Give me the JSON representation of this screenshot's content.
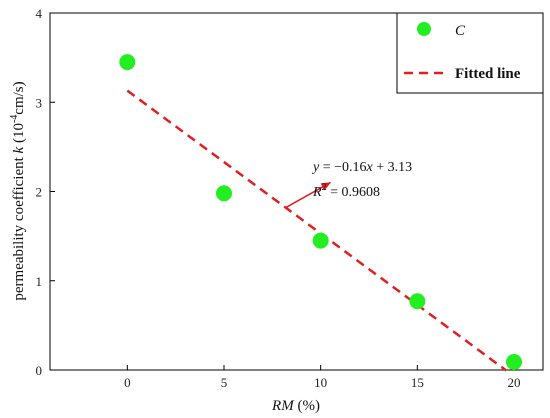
{
  "chart_data": {
    "type": "scatter",
    "xlabel": {
      "var": "RM",
      "unit": "(%)"
    },
    "ylabel": {
      "main": "permeability coefficient ",
      "var": "k",
      "open": " (10",
      "exp": "-4",
      "unit": "cm/s)"
    },
    "xlim": [
      -4,
      21.5
    ],
    "ylim": [
      0,
      4
    ],
    "xticks": [
      0,
      5,
      10,
      15,
      20
    ],
    "yticks": [
      0,
      1,
      2,
      3,
      4
    ],
    "xtick_labels": [
      "0",
      "5",
      "10",
      "15",
      "20"
    ],
    "ytick_labels": [
      "0",
      "1",
      "2",
      "3",
      "4"
    ],
    "grid": false,
    "legend_position": "top-right",
    "series": [
      {
        "name": "C",
        "marker": "circle",
        "color": "#22ee22",
        "x": [
          0,
          5,
          10,
          15,
          20
        ],
        "y": [
          3.45,
          1.98,
          1.45,
          0.77,
          0.09
        ]
      }
    ],
    "fit": {
      "name": "Fitted line",
      "color": "#e02020",
      "style": "dashed",
      "slope": -0.16,
      "intercept": 3.13,
      "x_range": [
        0,
        19.6
      ]
    },
    "annotation": {
      "eq_lhs": "y",
      "eq_rhs": " = −0.16",
      "eq_var": "x",
      "eq_tail": " + 3.13",
      "r2_lhs": "R",
      "r2_exp": "2",
      "r2_rhs": " = 0.9608",
      "arrow_from": [
        8.2,
        1.82
      ],
      "arrow_to": [
        10.5,
        2.1
      ],
      "arrow_color": "#e02020"
    }
  }
}
